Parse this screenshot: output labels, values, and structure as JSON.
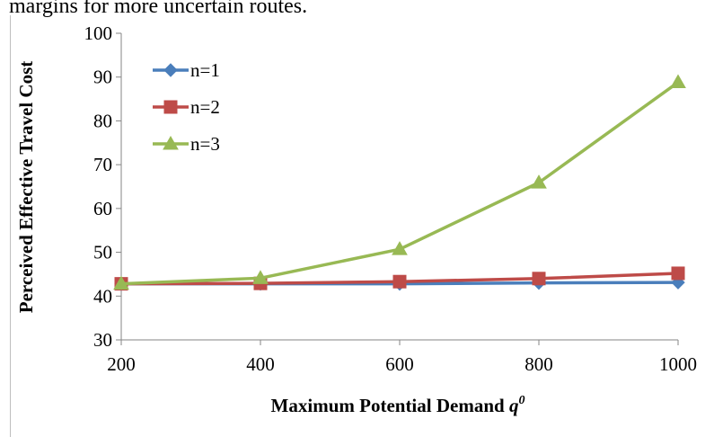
{
  "context_text": "margins for more uncertain routes.",
  "chart_data": {
    "type": "line",
    "title": "",
    "xlabel": "Maximum Potential Demand ",
    "xlabel_symbol": "q",
    "xlabel_superscript": "0",
    "ylabel": "Perceived Effective Travel Cost",
    "x": [
      200,
      400,
      600,
      800,
      1000
    ],
    "x_ticks": [
      "200",
      "400",
      "600",
      "800",
      "1000"
    ],
    "y_ticks": [
      "30",
      "40",
      "50",
      "60",
      "70",
      "80",
      "90",
      "100"
    ],
    "ylim": [
      30,
      100
    ],
    "grid": false,
    "legend_position": "top-left",
    "series": [
      {
        "name": "n=1",
        "color": "#4a7ebb",
        "marker": "diamond",
        "values": [
          42.8,
          42.8,
          42.8,
          43.0,
          43.1
        ]
      },
      {
        "name": "n=2",
        "color": "#be4b48",
        "marker": "square",
        "values": [
          42.8,
          42.9,
          43.3,
          44.0,
          45.2
        ]
      },
      {
        "name": "n=3",
        "color": "#98b954",
        "marker": "triangle",
        "values": [
          42.8,
          44.1,
          50.7,
          65.9,
          88.8
        ]
      }
    ]
  }
}
